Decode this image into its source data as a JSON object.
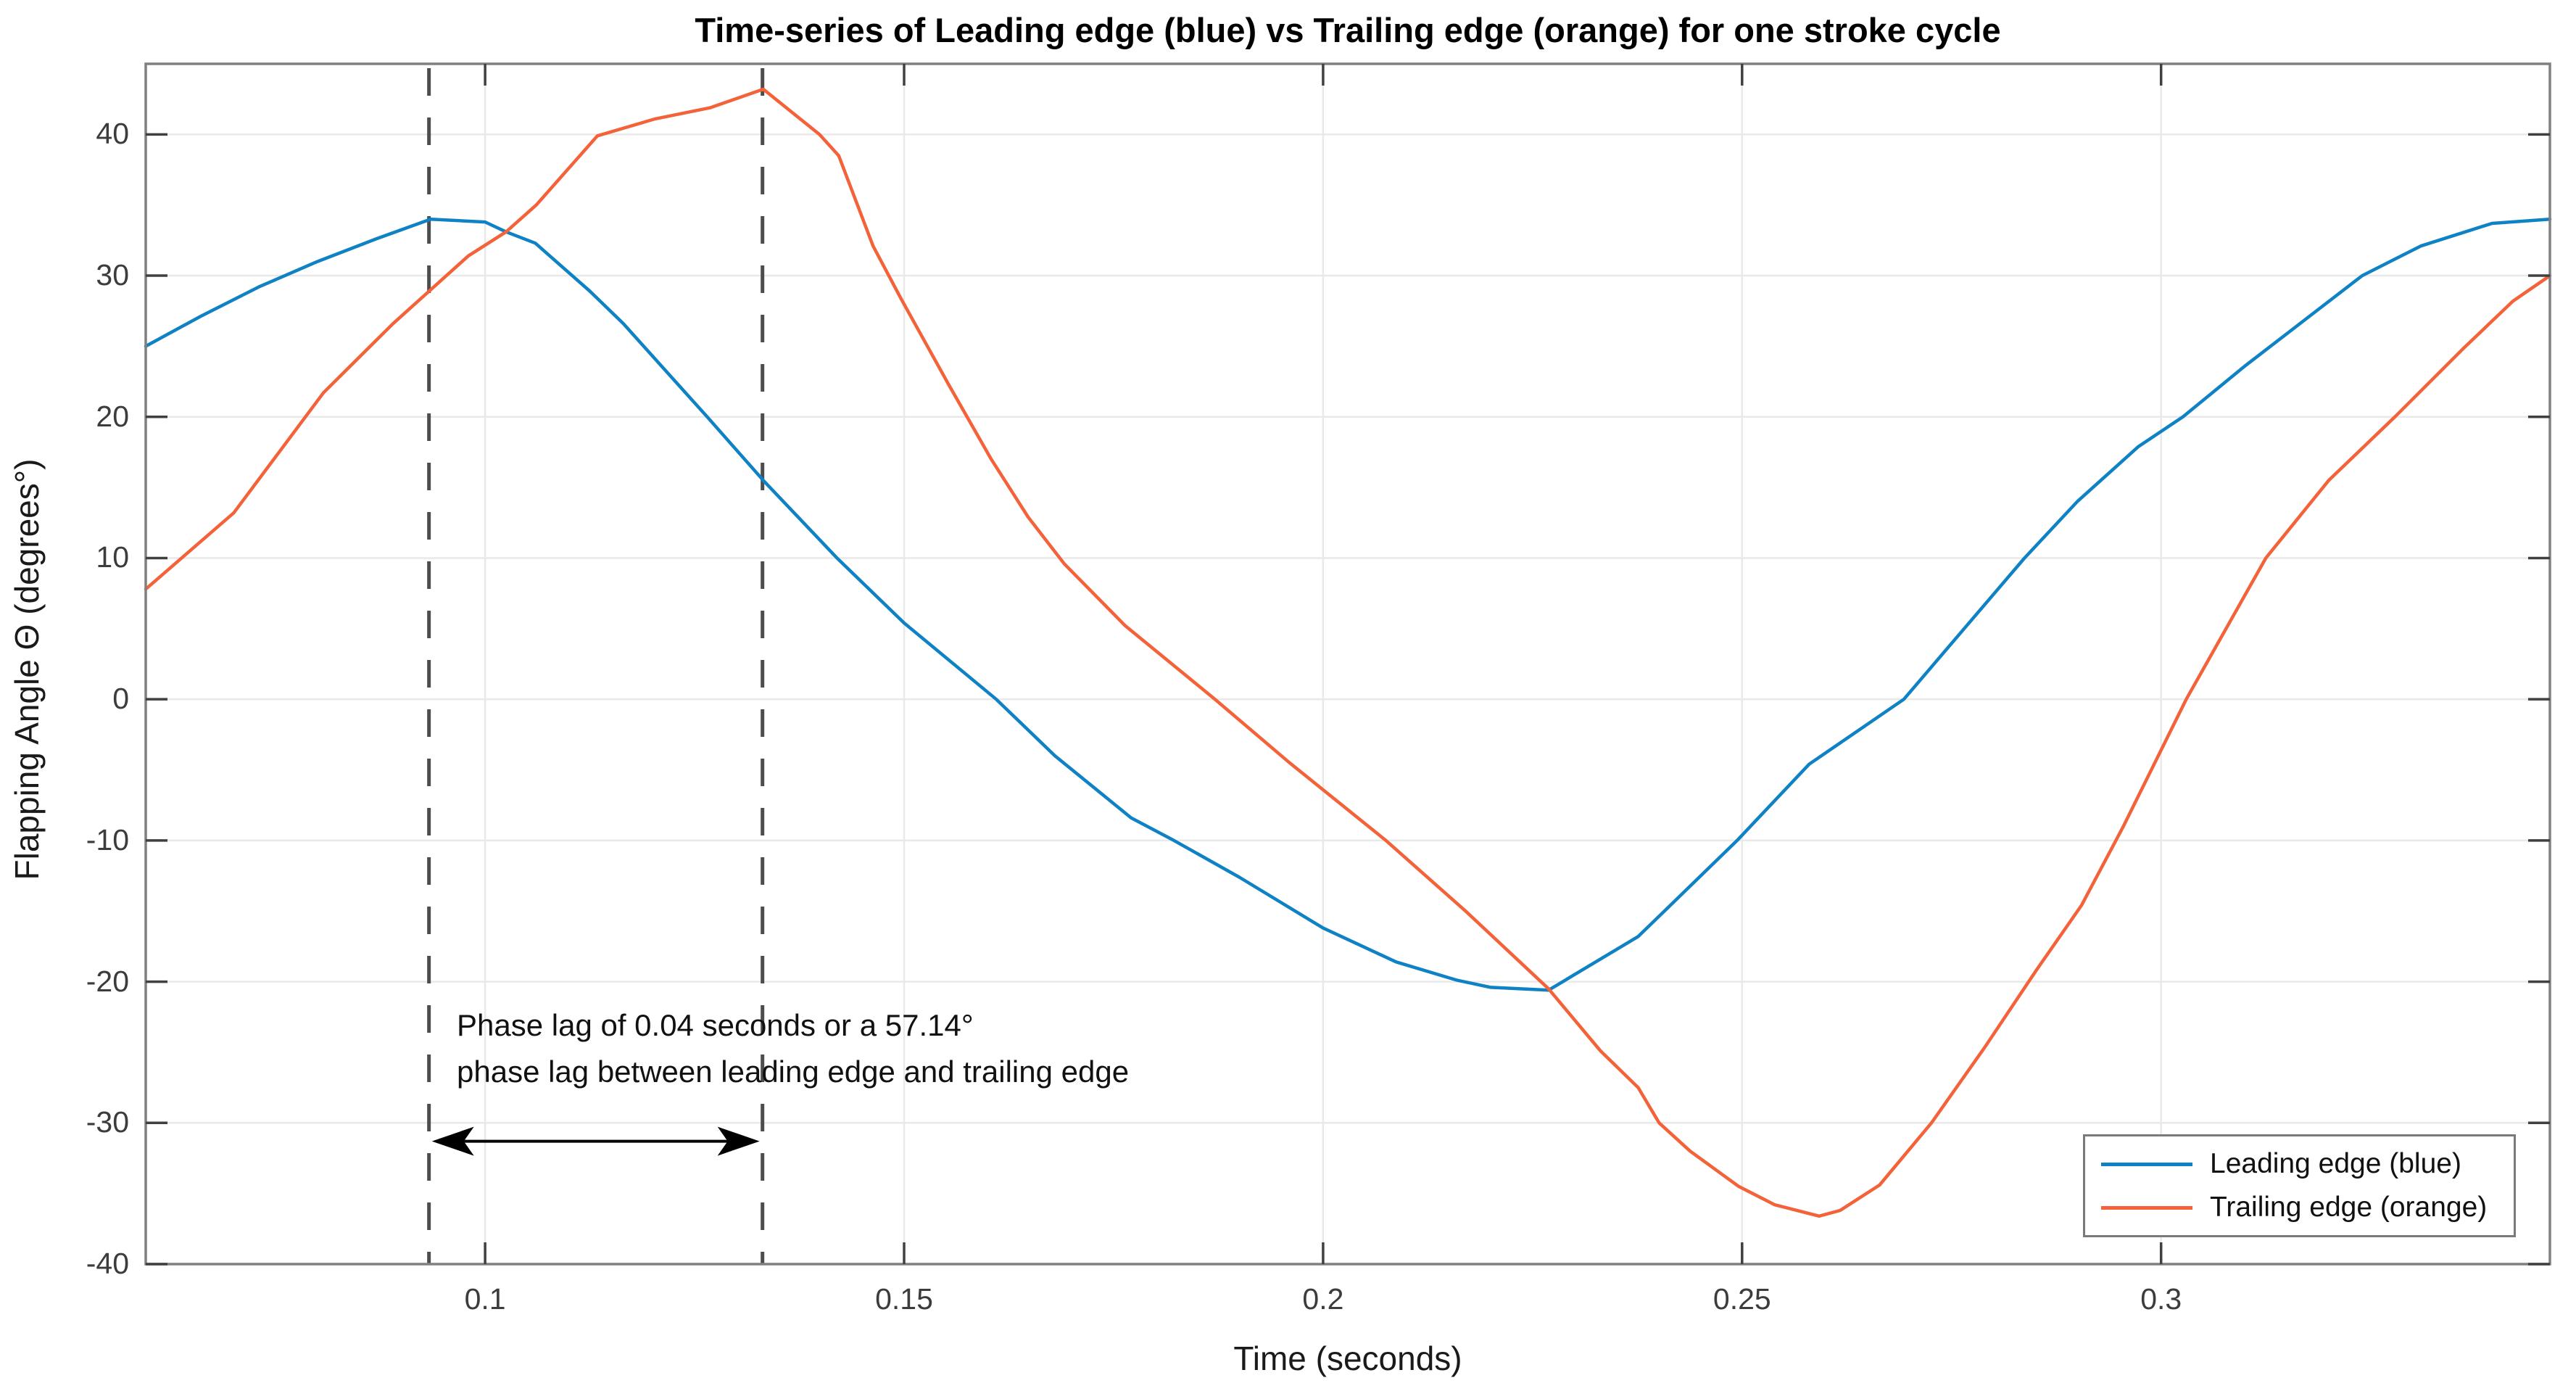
{
  "chart_data": {
    "type": "line",
    "title": "Time-series of Leading edge (blue) vs Trailing edge (orange) for one stroke cycle",
    "xlabel": "Time (seconds)",
    "ylabel": "Flapping Angle Θ (degrees°)",
    "xlim": [
      0.0595,
      0.3464
    ],
    "ylim": [
      -40,
      45
    ],
    "x_ticks": [
      0.1,
      0.15,
      0.2,
      0.25,
      0.3
    ],
    "x_tick_labels": [
      "0.1",
      "0.15",
      "0.2",
      "0.25",
      "0.3"
    ],
    "y_ticks": [
      -40,
      -30,
      -20,
      -10,
      0,
      10,
      20,
      30,
      40
    ],
    "y_tick_labels": [
      "-40",
      "-30",
      "-20",
      "-10",
      "0",
      "10",
      "20",
      "30",
      "40"
    ],
    "grid": true,
    "legend_position": "southeast",
    "series": [
      {
        "name": "Leading edge (blue)",
        "color": "#0e82c4",
        "points": [
          [
            0.0595,
            25.0
          ],
          [
            0.066,
            27.1
          ],
          [
            0.073,
            29.2
          ],
          [
            0.08,
            31.0
          ],
          [
            0.087,
            32.6
          ],
          [
            0.0935,
            34.0
          ],
          [
            0.1,
            33.8
          ],
          [
            0.1025,
            33.1
          ],
          [
            0.106,
            32.3
          ],
          [
            0.1125,
            28.9
          ],
          [
            0.1165,
            26.6
          ],
          [
            0.1265,
            20.0
          ],
          [
            0.1332,
            15.5
          ],
          [
            0.142,
            10.0
          ],
          [
            0.15,
            5.4
          ],
          [
            0.161,
            0.0
          ],
          [
            0.168,
            -4.0
          ],
          [
            0.1771,
            -8.4
          ],
          [
            0.1822,
            -10.0
          ],
          [
            0.19,
            -12.6
          ],
          [
            0.2,
            -16.2
          ],
          [
            0.2087,
            -18.6
          ],
          [
            0.216,
            -19.9
          ],
          [
            0.22,
            -20.4
          ],
          [
            0.2269,
            -20.6
          ],
          [
            0.2376,
            -16.8
          ],
          [
            0.2494,
            -10.0
          ],
          [
            0.258,
            -4.6
          ],
          [
            0.2693,
            0.0
          ],
          [
            0.2765,
            5.0
          ],
          [
            0.2837,
            10.0
          ],
          [
            0.29,
            14.0
          ],
          [
            0.2973,
            17.9
          ],
          [
            0.3026,
            20.0
          ],
          [
            0.31,
            23.6
          ],
          [
            0.317,
            26.8
          ],
          [
            0.324,
            30.0
          ],
          [
            0.331,
            32.1
          ],
          [
            0.3395,
            33.7
          ],
          [
            0.3464,
            34.0
          ]
        ]
      },
      {
        "name": "Trailing edge (orange)",
        "color": "#f4623a",
        "points": [
          [
            0.0595,
            7.8
          ],
          [
            0.07,
            13.2
          ],
          [
            0.0807,
            21.7
          ],
          [
            0.089,
            26.6
          ],
          [
            0.098,
            31.4
          ],
          [
            0.1025,
            33.1
          ],
          [
            0.1061,
            35.0
          ],
          [
            0.1134,
            39.9
          ],
          [
            0.1203,
            41.1
          ],
          [
            0.1269,
            41.9
          ],
          [
            0.1332,
            43.2
          ],
          [
            0.1399,
            40.0
          ],
          [
            0.1422,
            38.5
          ],
          [
            0.1463,
            32.1
          ],
          [
            0.1497,
            28.3
          ],
          [
            0.1553,
            22.3
          ],
          [
            0.1604,
            17.0
          ],
          [
            0.1648,
            12.9
          ],
          [
            0.1691,
            9.6
          ],
          [
            0.1764,
            5.2
          ],
          [
            0.1871,
            0.0
          ],
          [
            0.196,
            -4.5
          ],
          [
            0.2075,
            -10.0
          ],
          [
            0.217,
            -15.0
          ],
          [
            0.2269,
            -20.5
          ],
          [
            0.2331,
            -24.9
          ],
          [
            0.2376,
            -27.5
          ],
          [
            0.2401,
            -30.0
          ],
          [
            0.2438,
            -32.0
          ],
          [
            0.2496,
            -34.5
          ],
          [
            0.2539,
            -35.8
          ],
          [
            0.2592,
            -36.6
          ],
          [
            0.2617,
            -36.2
          ],
          [
            0.2664,
            -34.4
          ],
          [
            0.2726,
            -30.0
          ],
          [
            0.2789,
            -24.7
          ],
          [
            0.2851,
            -19.2
          ],
          [
            0.2905,
            -14.6
          ],
          [
            0.2955,
            -9.0
          ],
          [
            0.3005,
            -3.0
          ],
          [
            0.303,
            0.0
          ],
          [
            0.3125,
            10.0
          ],
          [
            0.32,
            15.5
          ],
          [
            0.3279,
            20.0
          ],
          [
            0.336,
            24.8
          ],
          [
            0.342,
            28.2
          ],
          [
            0.3464,
            30.0
          ]
        ]
      }
    ],
    "phase_markers": {
      "dashed_line_times": [
        0.0933,
        0.1331
      ],
      "arrow_y_value": -31.3,
      "annotation": {
        "line1": "Phase lag of 0.04 seconds or a 57.14°",
        "line2": "phase lag between leading edge and trailing edge"
      }
    },
    "style_colors": {
      "grid": "#e9e9e9",
      "axis_border": "#808080",
      "tick": "#404040",
      "dashed_marker": "#4d4d4d",
      "arrow": "#000000"
    }
  }
}
